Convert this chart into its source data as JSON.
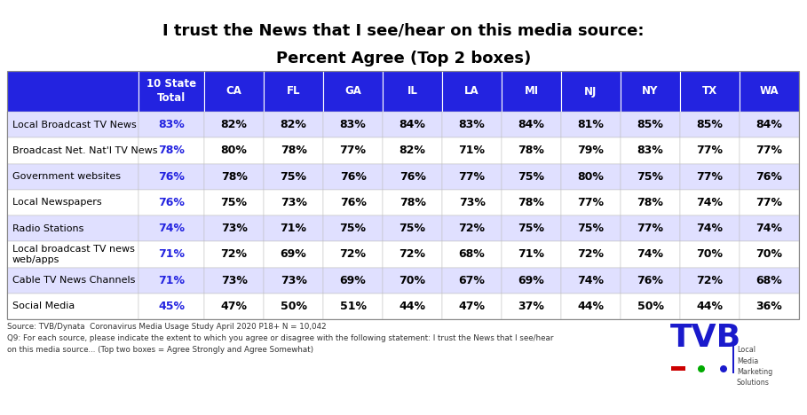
{
  "title_line1": "I trust the News that I see/hear on this media source:",
  "title_line2": "Percent Agree (Top 2 boxes)",
  "title_fontsize": 13,
  "header_bg": "#2323e0",
  "header_text_color": "#ffffff",
  "col_headers": [
    "",
    "10 State\nTotal",
    "CA",
    "FL",
    "GA",
    "IL",
    "LA",
    "MI",
    "NJ",
    "NY",
    "TX",
    "WA"
  ],
  "row_labels": [
    "Local Broadcast TV News",
    "Broadcast Net. Nat'l TV News",
    "Government websites",
    "Local Newspapers",
    "Radio Stations",
    "Local broadcast TV news\nweb/apps",
    "Cable TV News Channels",
    "Social Media"
  ],
  "table_data": [
    [
      "83%",
      "82%",
      "82%",
      "83%",
      "84%",
      "83%",
      "84%",
      "81%",
      "85%",
      "85%",
      "84%"
    ],
    [
      "78%",
      "80%",
      "78%",
      "77%",
      "82%",
      "71%",
      "78%",
      "79%",
      "83%",
      "77%",
      "77%"
    ],
    [
      "76%",
      "78%",
      "75%",
      "76%",
      "76%",
      "77%",
      "75%",
      "80%",
      "75%",
      "77%",
      "76%"
    ],
    [
      "76%",
      "75%",
      "73%",
      "76%",
      "78%",
      "73%",
      "78%",
      "77%",
      "78%",
      "74%",
      "77%"
    ],
    [
      "74%",
      "73%",
      "71%",
      "75%",
      "75%",
      "72%",
      "75%",
      "75%",
      "77%",
      "74%",
      "74%"
    ],
    [
      "71%",
      "72%",
      "69%",
      "72%",
      "72%",
      "68%",
      "71%",
      "72%",
      "74%",
      "70%",
      "70%"
    ],
    [
      "71%",
      "73%",
      "73%",
      "69%",
      "70%",
      "67%",
      "69%",
      "74%",
      "76%",
      "72%",
      "68%"
    ],
    [
      "45%",
      "47%",
      "50%",
      "51%",
      "44%",
      "47%",
      "37%",
      "44%",
      "50%",
      "44%",
      "36%"
    ]
  ],
  "row_bg_colors": [
    "#e0e0ff",
    "#ffffff",
    "#e0e0ff",
    "#ffffff",
    "#e0e0ff",
    "#ffffff",
    "#e0e0ff",
    "#ffffff"
  ],
  "total_col_idx": 1,
  "total_col_color": "#2323e0",
  "data_text_color": "#000000",
  "footer_line1": "Source: TVB/Dynata  Coronavirus Media Usage Study April 2020 P18+ N = 10,042",
  "footer_line2": "Q9: For each source, please indicate the extent to which you agree or disagree with the following statement: I trust the News that I see/hear",
  "footer_line3": "on this media source... (Top two boxes = Agree Strongly and Agree Somewhat)",
  "bg_color": "#ffffff"
}
